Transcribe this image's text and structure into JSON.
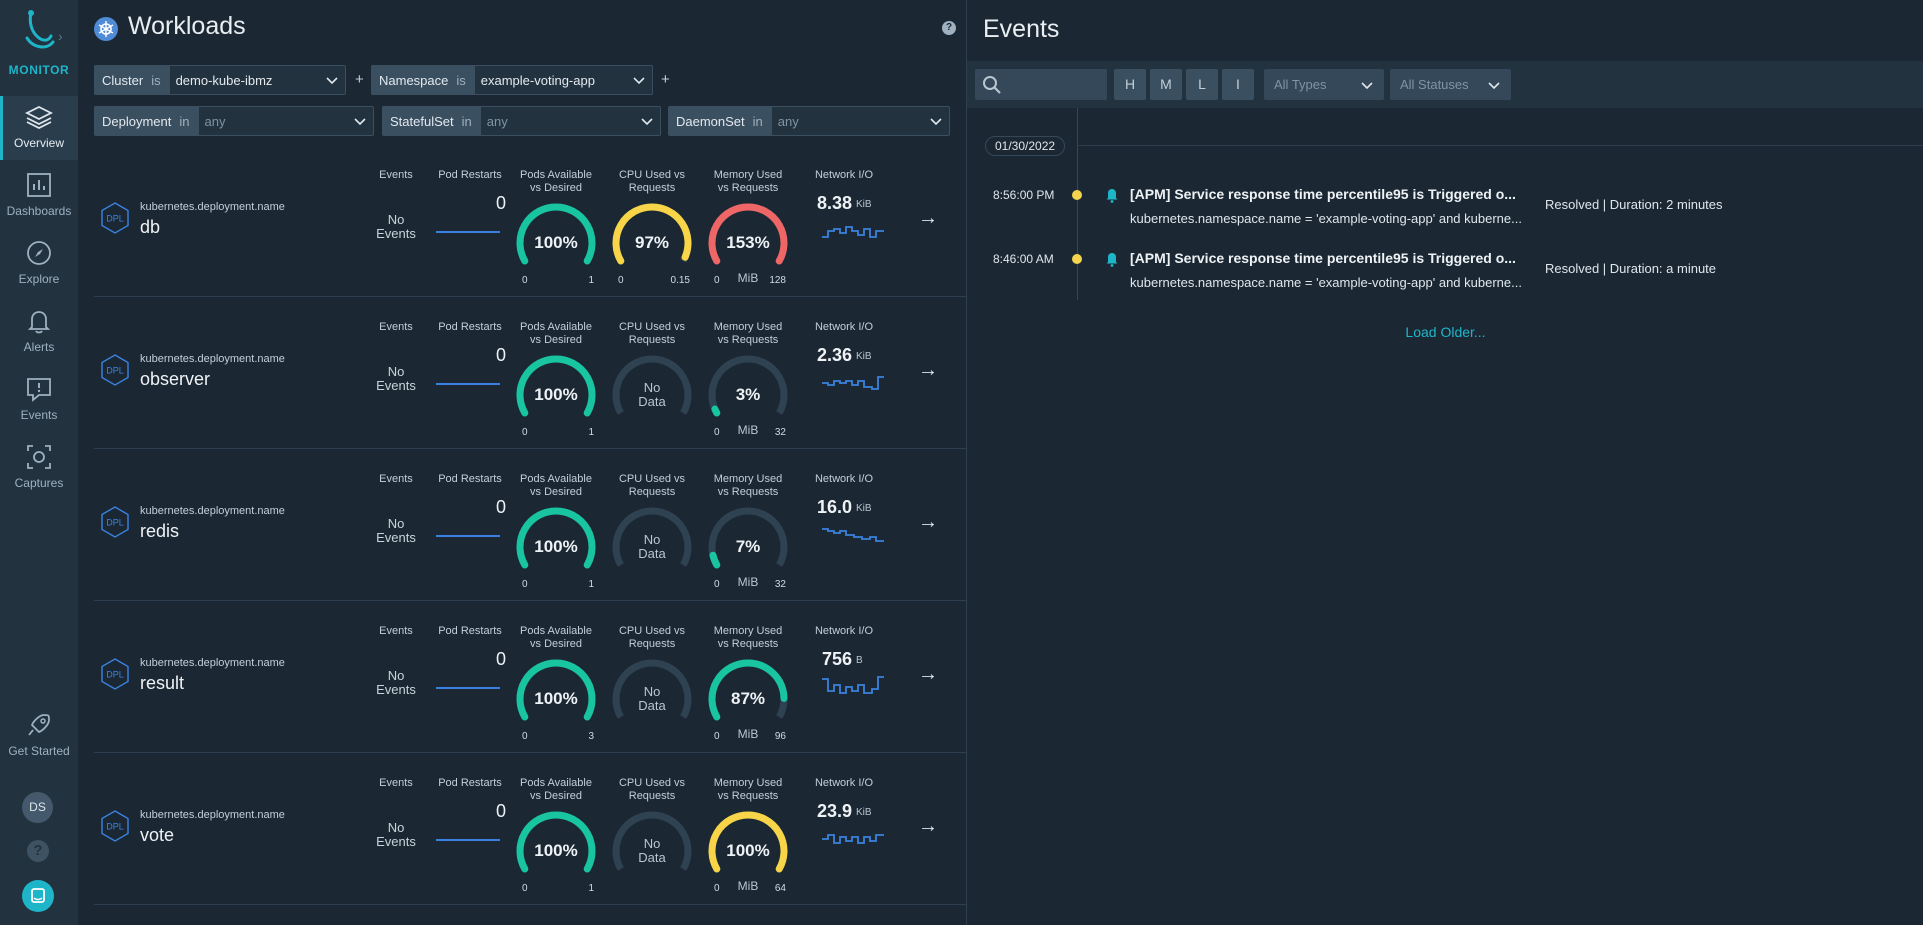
{
  "sidebar": {
    "brand": "MONITOR",
    "items": [
      {
        "label": "Overview",
        "icon": "overview-icon"
      },
      {
        "label": "Dashboards",
        "icon": "dashboards-icon"
      },
      {
        "label": "Explore",
        "icon": "compass-icon"
      },
      {
        "label": "Alerts",
        "icon": "bell-icon"
      },
      {
        "label": "Events",
        "icon": "events-icon"
      },
      {
        "label": "Captures",
        "icon": "captures-icon"
      }
    ],
    "get_started": "Get Started",
    "avatar": "DS",
    "help": "?"
  },
  "workloads": {
    "title": "Workloads",
    "help": "?",
    "plus": "+",
    "filters": {
      "cluster": {
        "key": "Cluster",
        "op": "is",
        "value": "demo-kube-ibmz"
      },
      "namespace": {
        "key": "Namespace",
        "op": "is",
        "value": "example-voting-app"
      },
      "deployment": {
        "key": "Deployment",
        "op": "in",
        "value": "any"
      },
      "statefulset": {
        "key": "StatefulSet",
        "op": "in",
        "value": "any"
      },
      "daemonset": {
        "key": "DaemonSet",
        "op": "in",
        "value": "any"
      }
    },
    "columns": {
      "events": "Events",
      "pod_restarts": "Pod Restarts",
      "pods_l1": "Pods Available",
      "pods_l2": "vs Desired",
      "cpu_l1": "CPU Used vs",
      "cpu_l2": "Requests",
      "mem_l1": "Memory Used",
      "mem_l2": "vs Requests",
      "net": "Network I/O"
    },
    "no_events_l1": "No",
    "no_events_l2": "Events",
    "no_data_l1": "No",
    "no_data_l2": "Data",
    "kind_badge": "DPL",
    "arrow": "→",
    "rows": [
      {
        "meta": "kubernetes.deployment.name",
        "name": "db",
        "restarts": "0",
        "pods": {
          "label": "100%",
          "fraction": 1.0,
          "min": "0",
          "max": "1",
          "color": "#19c5a0"
        },
        "cpu": {
          "label": "97%",
          "fraction": 0.97,
          "min": "0",
          "max": "0.15",
          "color": "#f7d448"
        },
        "mem": {
          "label": "153%",
          "fraction": 1.0,
          "min": "0",
          "max": "128",
          "unit": "MiB",
          "color": "#ef6667"
        },
        "net": {
          "value": "8.38",
          "unit": "KiB"
        }
      },
      {
        "meta": "kubernetes.deployment.name",
        "name": "observer",
        "restarts": "0",
        "pods": {
          "label": "100%",
          "fraction": 1.0,
          "min": "0",
          "max": "1",
          "color": "#19c5a0"
        },
        "cpu": null,
        "mem": {
          "label": "3%",
          "fraction": 0.03,
          "min": "0",
          "max": "32",
          "unit": "MiB",
          "color": "#19c5a0"
        },
        "net": {
          "value": "2.36",
          "unit": "KiB"
        }
      },
      {
        "meta": "kubernetes.deployment.name",
        "name": "redis",
        "restarts": "0",
        "pods": {
          "label": "100%",
          "fraction": 1.0,
          "min": "0",
          "max": "1",
          "color": "#19c5a0"
        },
        "cpu": null,
        "mem": {
          "label": "7%",
          "fraction": 0.07,
          "min": "0",
          "max": "32",
          "unit": "MiB",
          "color": "#19c5a0"
        },
        "net": {
          "value": "16.0",
          "unit": "KiB"
        }
      },
      {
        "meta": "kubernetes.deployment.name",
        "name": "result",
        "restarts": "0",
        "pods": {
          "label": "100%",
          "fraction": 1.0,
          "min": "0",
          "max": "3",
          "color": "#19c5a0"
        },
        "cpu": null,
        "mem": {
          "label": "87%",
          "fraction": 0.87,
          "min": "0",
          "max": "96",
          "unit": "MiB",
          "color": "#19c5a0"
        },
        "net": {
          "value": "756",
          "unit": "B"
        }
      },
      {
        "meta": "kubernetes.deployment.name",
        "name": "vote",
        "restarts": "0",
        "pods": {
          "label": "100%",
          "fraction": 1.0,
          "min": "0",
          "max": "1",
          "color": "#19c5a0"
        },
        "cpu": null,
        "mem": {
          "label": "100%",
          "fraction": 1.0,
          "min": "0",
          "max": "64",
          "unit": "MiB",
          "color": "#f7d448"
        },
        "net": {
          "value": "23.9",
          "unit": "KiB"
        }
      }
    ]
  },
  "events": {
    "title": "Events",
    "severity_buttons": [
      "H",
      "M",
      "L",
      "I"
    ],
    "types_select": "All Types",
    "statuses_select": "All Statuses",
    "date": "01/30/2022",
    "items": [
      {
        "time": "8:56:00 PM",
        "title": "[APM] Service response time percentile95 is Triggered o...",
        "subtitle": "kubernetes.namespace.name = 'example-voting-app' and kuberne...",
        "status": "Resolved | Duration: 2 minutes"
      },
      {
        "time": "8:46:00 AM",
        "title": "[APM] Service response time percentile95 is Triggered o...",
        "subtitle": "kubernetes.namespace.name = 'example-voting-app' and kuberne...",
        "status": "Resolved | Duration: a minute"
      }
    ],
    "load_older": "Load Older..."
  },
  "colors": {
    "accent": "#1fb5c9",
    "ok": "#19c5a0",
    "warn": "#f7d448",
    "critical": "#ef6667",
    "sparkline": "#3b82e0"
  }
}
